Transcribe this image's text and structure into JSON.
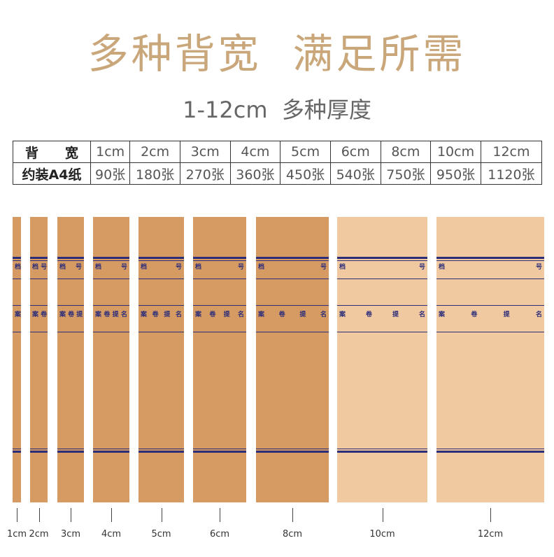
{
  "header": {
    "title": "多种背宽  满足所需",
    "subtitle": "1-12cm  多种厚度"
  },
  "table": {
    "rows": [
      [
        "背　　宽",
        "1cm",
        "2cm",
        "3cm",
        "4cm",
        "5cm",
        "6cm",
        "8cm",
        "10cm",
        "12cm"
      ],
      [
        "约装A4纸",
        "90张",
        "180张",
        "270张",
        "360张",
        "450张",
        "540张",
        "750张",
        "950张",
        "1120张"
      ]
    ]
  },
  "spine_text": {
    "file_no": "档 号",
    "file_title": "案 卷 提 名"
  },
  "spines": [
    {
      "label": "1cm"
    },
    {
      "label": "2cm"
    },
    {
      "label": "3cm"
    },
    {
      "label": "4cm"
    },
    {
      "label": "5cm"
    },
    {
      "label": "6cm"
    },
    {
      "label": "8cm"
    },
    {
      "label": "10cm"
    },
    {
      "label": "12cm"
    }
  ]
}
